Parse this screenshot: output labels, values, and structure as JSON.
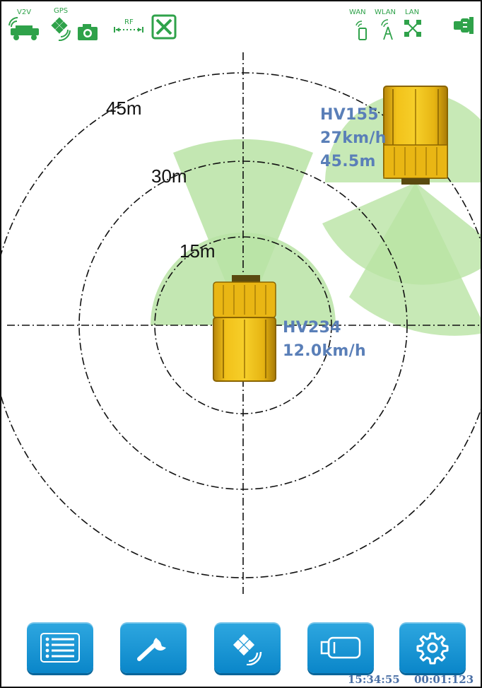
{
  "status_bar": {
    "v2v_label": "V2V",
    "gps_label": "GPS",
    "rf_label": "RF",
    "wan_label": "WAN",
    "wlan_label": "WLAN",
    "lan_label": "LAN",
    "accent_color": "#2fa24a"
  },
  "radar": {
    "ring_labels": [
      "15m",
      "30m",
      "45m"
    ],
    "sector_color": "#b9e3a4"
  },
  "vehicles": {
    "own": {
      "id": "HV234",
      "speed": "12.0km/h"
    },
    "other": {
      "id": "HV155",
      "speed": "27km/h",
      "distance": "45.5m"
    }
  },
  "toolbar": {
    "buttons": [
      {
        "name": "list-button",
        "icon": "list-icon"
      },
      {
        "name": "tools-button",
        "icon": "wrench-icon"
      },
      {
        "name": "satellite-button",
        "icon": "satellite-icon"
      },
      {
        "name": "camera-button",
        "icon": "camera-icon"
      },
      {
        "name": "settings-button",
        "icon": "gear-icon"
      }
    ],
    "button_color": "#1a97d6"
  },
  "footer": {
    "clock": "15:34:55",
    "timer": "00:01:123"
  }
}
